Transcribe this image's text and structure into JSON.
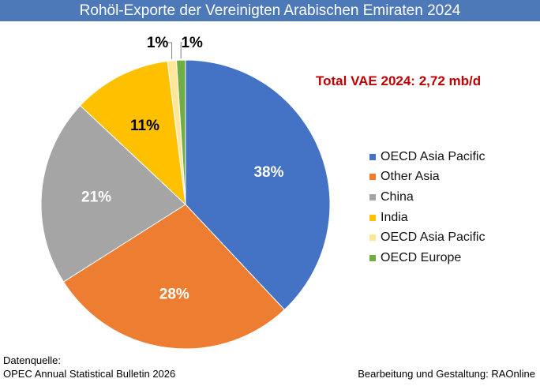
{
  "title": "Rohöl-Exporte der Vereinigten Arabischen Emiraten 2024",
  "total_label": "Total VAE 2024: 2,72  mb/d",
  "source": {
    "heading": "Datenquelle:",
    "text": "OPEC Annual Statistical Bulletin 2026"
  },
  "credit": "Bearbeitung und Gestaltung: RAOnline",
  "chart_data": {
    "type": "pie",
    "title": "Rohöl-Exporte der Vereinigten Arabischen Emiraten 2024",
    "unit": "%",
    "legend_position": "right",
    "start": "top",
    "direction": "clockwise",
    "slices": [
      {
        "name": "OECD Asia Pacific",
        "value": 38,
        "label": "38%",
        "color": "#4472c4"
      },
      {
        "name": "Other Asia",
        "value": 28,
        "label": "28%",
        "color": "#ed7d31"
      },
      {
        "name": "China",
        "value": 21,
        "label": "21%",
        "color": "#a5a5a5"
      },
      {
        "name": "India",
        "value": 11,
        "label": "11%",
        "color": "#ffc000"
      },
      {
        "name": "OECD Asia Pacific",
        "value": 1,
        "label": "1%",
        "color": "#ffe699"
      },
      {
        "name": "OECD Europe",
        "value": 1,
        "label": "1%",
        "color": "#70ad47"
      }
    ]
  }
}
